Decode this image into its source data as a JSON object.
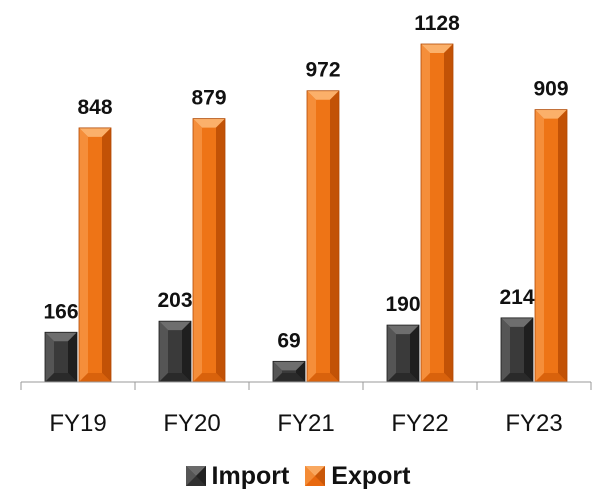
{
  "chart_data": {
    "type": "bar",
    "categories": [
      "FY19",
      "FY20",
      "FY21",
      "FY22",
      "FY23"
    ],
    "series": [
      {
        "name": "Import",
        "values": [
          166,
          203,
          69,
          190,
          214
        ],
        "color": "#404040"
      },
      {
        "name": "Export",
        "values": [
          848,
          879,
          972,
          1128,
          909
        ],
        "color": "#F07A1A"
      }
    ],
    "ylim": [
      0,
      1128
    ],
    "grid": false,
    "legend_position": "bottom",
    "show_data_labels": true,
    "bar_style": "3d-bevel"
  }
}
